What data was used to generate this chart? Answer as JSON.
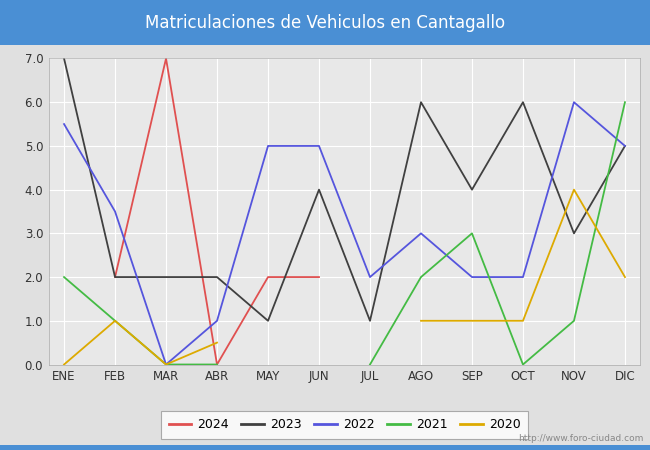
{
  "title": "Matriculaciones de Vehiculos en Cantagallo",
  "title_bg_color": "#4a8fd4",
  "title_text_color": "white",
  "months": [
    "ENE",
    "FEB",
    "MAR",
    "ABR",
    "MAY",
    "JUN",
    "JUL",
    "AGO",
    "SEP",
    "OCT",
    "NOV",
    "DIC"
  ],
  "series": {
    "2024": {
      "color": "#e05050",
      "values": [
        null,
        2.0,
        7.0,
        0.0,
        2.0,
        2.0,
        null,
        null,
        null,
        null,
        null,
        null
      ]
    },
    "2023": {
      "color": "#404040",
      "values": [
        7.0,
        2.0,
        2.0,
        2.0,
        1.0,
        4.0,
        1.0,
        6.0,
        4.0,
        6.0,
        3.0,
        5.0
      ]
    },
    "2022": {
      "color": "#5555dd",
      "values": [
        5.5,
        3.5,
        0.0,
        1.0,
        5.0,
        5.0,
        2.0,
        3.0,
        2.0,
        2.0,
        6.0,
        5.0
      ]
    },
    "2021": {
      "color": "#44bb44",
      "values": [
        2.0,
        1.0,
        0.0,
        0.0,
        null,
        null,
        0.0,
        2.0,
        3.0,
        0.0,
        1.0,
        6.0
      ]
    },
    "2020": {
      "color": "#ddaa00",
      "values": [
        0.0,
        1.0,
        0.0,
        0.5,
        null,
        null,
        null,
        1.0,
        1.0,
        1.0,
        4.0,
        2.0
      ]
    }
  },
  "ylim": [
    0.0,
    7.0
  ],
  "yticks": [
    0.0,
    1.0,
    2.0,
    3.0,
    4.0,
    5.0,
    6.0,
    7.0
  ],
  "watermark": "http://www.foro-ciudad.com",
  "outer_bg_color": "#e0e0e0",
  "plot_bg_color": "#e8e8e8",
  "grid_color": "white",
  "linewidth": 1.3,
  "title_fontsize": 12,
  "tick_fontsize": 8.5
}
